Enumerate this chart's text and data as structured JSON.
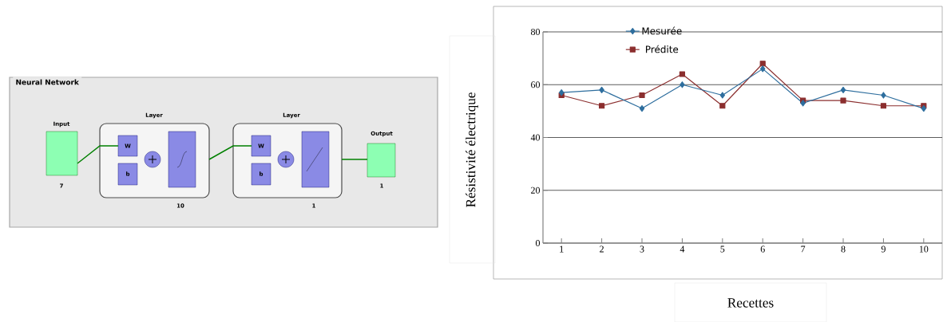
{
  "chart_data": [
    {
      "type": "other",
      "title": "Neural Network",
      "annotations": [
        "Input",
        "7",
        "Layer",
        "10",
        "Layer",
        "1",
        "Output",
        "1",
        "W",
        "b",
        "W",
        "b"
      ]
    },
    {
      "type": "line",
      "xlabel": "Recettes",
      "ylabel": "Résistivité électrique",
      "categories": [
        "1",
        "2",
        "3",
        "4",
        "5",
        "6",
        "7",
        "8",
        "9",
        "10"
      ],
      "series": [
        {
          "name": "Mesurée",
          "color": "#2e6e9e",
          "marker": "diamond",
          "values": [
            57,
            58,
            51,
            60,
            56,
            66,
            53,
            58,
            56,
            51
          ]
        },
        {
          "name": "Prédite",
          "color": "#8b2e2e",
          "marker": "square",
          "values": [
            56,
            52,
            56,
            64,
            52,
            68,
            54,
            54,
            52,
            52
          ]
        }
      ],
      "ylim": [
        0,
        80
      ],
      "yticks": [
        0,
        20,
        40,
        60,
        80
      ],
      "grid": "y",
      "legend": "top"
    }
  ]
}
